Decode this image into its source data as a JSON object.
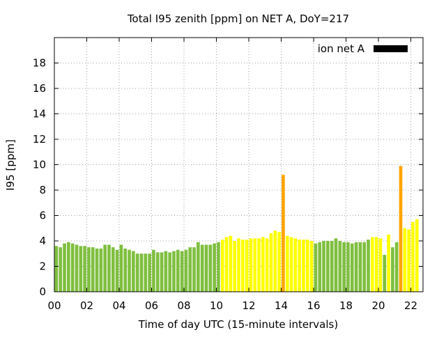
{
  "chart_data": {
    "type": "bar",
    "title": "Total I95 zenith [ppm] on NET A, DoY=217",
    "xlabel": "Time of day UTC (15-minute intervals)",
    "ylabel": "I95 [ppm]",
    "xlim": [
      0,
      22.75
    ],
    "ylim": [
      0,
      20
    ],
    "grid": true,
    "legend_position": "top-right",
    "legend": [
      {
        "name": "ion net A",
        "color": "#000000"
      }
    ],
    "x_ticks": [
      "00",
      "02",
      "04",
      "06",
      "08",
      "10",
      "12",
      "14",
      "16",
      "18",
      "20",
      "22"
    ],
    "y_ticks": [
      "0",
      "2",
      "4",
      "6",
      "8",
      "10",
      "12",
      "14",
      "16",
      "18"
    ],
    "palette": {
      "green": "#7fbf3f",
      "yellow": "#ffff00",
      "orange": "#ffa500"
    },
    "bar_start_hour": 0,
    "bar_step_hours": 0.25,
    "values": [
      3.6,
      3.5,
      3.8,
      3.9,
      3.8,
      3.7,
      3.6,
      3.6,
      3.5,
      3.5,
      3.4,
      3.4,
      3.7,
      3.7,
      3.5,
      3.3,
      3.7,
      3.4,
      3.3,
      3.2,
      3.0,
      3.0,
      3.0,
      3.0,
      3.3,
      3.1,
      3.1,
      3.2,
      3.1,
      3.2,
      3.3,
      3.2,
      3.3,
      3.5,
      3.5,
      3.9,
      3.7,
      3.7,
      3.7,
      3.8,
      3.9,
      4.1,
      4.3,
      4.4,
      4.0,
      4.2,
      4.1,
      4.1,
      4.2,
      4.2,
      4.2,
      4.3,
      4.2,
      4.6,
      4.8,
      4.7,
      9.2,
      4.4,
      4.3,
      4.2,
      4.1,
      4.1,
      4.1,
      4.0,
      3.8,
      3.9,
      4.0,
      4.0,
      4.0,
      4.2,
      4.0,
      3.9,
      3.9,
      3.8,
      3.9,
      3.9,
      3.9,
      4.1,
      4.3,
      4.3,
      4.2,
      2.9,
      4.5,
      3.5,
      3.9,
      9.9,
      5.0,
      4.9,
      5.5,
      5.7
    ],
    "colors": [
      "green",
      "green",
      "green",
      "green",
      "green",
      "green",
      "green",
      "green",
      "green",
      "green",
      "green",
      "green",
      "green",
      "green",
      "green",
      "green",
      "green",
      "green",
      "green",
      "green",
      "green",
      "green",
      "green",
      "green",
      "green",
      "green",
      "green",
      "green",
      "green",
      "green",
      "green",
      "green",
      "green",
      "green",
      "green",
      "green",
      "green",
      "green",
      "green",
      "green",
      "green",
      "yellow",
      "yellow",
      "yellow",
      "yellow",
      "yellow",
      "yellow",
      "yellow",
      "yellow",
      "yellow",
      "yellow",
      "yellow",
      "yellow",
      "yellow",
      "yellow",
      "yellow",
      "orange",
      "yellow",
      "yellow",
      "yellow",
      "yellow",
      "yellow",
      "yellow",
      "yellow",
      "green",
      "green",
      "green",
      "green",
      "green",
      "green",
      "green",
      "green",
      "green",
      "green",
      "green",
      "green",
      "green",
      "green",
      "yellow",
      "yellow",
      "yellow",
      "green",
      "yellow",
      "green",
      "green",
      "orange",
      "yellow",
      "yellow",
      "yellow",
      "yellow"
    ]
  }
}
